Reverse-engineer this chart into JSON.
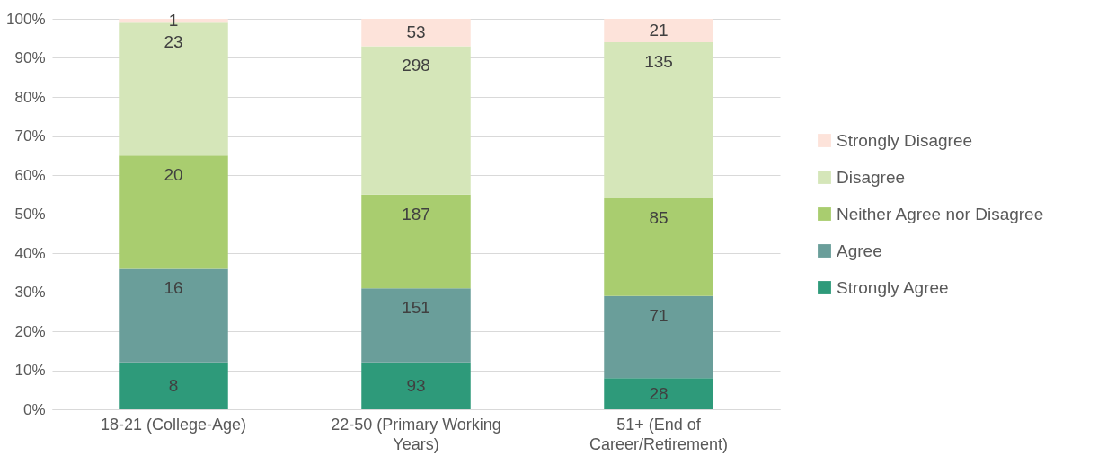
{
  "chart_data": {
    "type": "bar",
    "stacked": true,
    "categories": [
      "18-21 (College-Age)",
      "22-50 (Primary Working Years)",
      "51+ (End of Career/Retirement)"
    ],
    "series": [
      {
        "name": "Strongly Agree",
        "color": "#2e9a7a",
        "values": [
          12,
          12,
          8
        ]
      },
      {
        "name": "Agree",
        "color": "#6a9e9a",
        "values": [
          24,
          19,
          21
        ]
      },
      {
        "name": "Neither Agree nor Disagree",
        "color": "#a9cd6f",
        "values": [
          29,
          24,
          25
        ]
      },
      {
        "name": "Disagree",
        "color": "#d5e6b9",
        "values": [
          34,
          38,
          40
        ]
      },
      {
        "name": "Strongly Disagree",
        "color": "#fde3da",
        "values": [
          1,
          7,
          6
        ]
      }
    ],
    "annotations": [
      {
        "text": "8",
        "x": "18-21 (College-Age)",
        "y": 12
      },
      {
        "text": "16",
        "x": "18-21 (College-Age)",
        "y": 36
      },
      {
        "text": "20",
        "x": "18-21 (College-Age)",
        "y": 65
      },
      {
        "text": "23",
        "x": "18-21 (College-Age)",
        "y": 99
      },
      {
        "text": "1",
        "x": "18-21 (College-Age)",
        "y": 100
      },
      {
        "text": "93",
        "x": "22-50 (Primary Working Years)",
        "y": 12
      },
      {
        "text": "151",
        "x": "22-50 (Primary Working Years)",
        "y": 31
      },
      {
        "text": "187",
        "x": "22-50 (Primary Working Years)",
        "y": 55
      },
      {
        "text": "298",
        "x": "22-50 (Primary Working Years)",
        "y": 93
      },
      {
        "text": "53",
        "x": "22-50 (Primary Working Years)",
        "y": 100
      },
      {
        "text": "28",
        "x": "51+ (End of Career/Retirement)",
        "y": 8
      },
      {
        "text": "71",
        "x": "51+ (End of Career/Retirement)",
        "y": 29
      },
      {
        "text": "85",
        "x": "51+ (End of Career/Retirement)",
        "y": 54
      },
      {
        "text": "135",
        "x": "51+ (End of Career/Retirement)",
        "y": 94
      },
      {
        "text": "21",
        "x": "51+ (End of Career/Retirement)",
        "y": 100
      }
    ],
    "ylim": [
      0,
      100
    ],
    "yticks": [
      {
        "value": 0,
        "label": "0%"
      },
      {
        "value": 10,
        "label": "10%"
      },
      {
        "value": 20,
        "label": "20%"
      },
      {
        "value": 30,
        "label": "30%"
      },
      {
        "value": 40,
        "label": "40%"
      },
      {
        "value": 50,
        "label": "50%"
      },
      {
        "value": 60,
        "label": "60%"
      },
      {
        "value": 70,
        "label": "70%"
      },
      {
        "value": 80,
        "label": "80%"
      },
      {
        "value": 90,
        "label": "90%"
      },
      {
        "value": 100,
        "label": "100%"
      }
    ],
    "grid": "y",
    "legend": "right"
  }
}
